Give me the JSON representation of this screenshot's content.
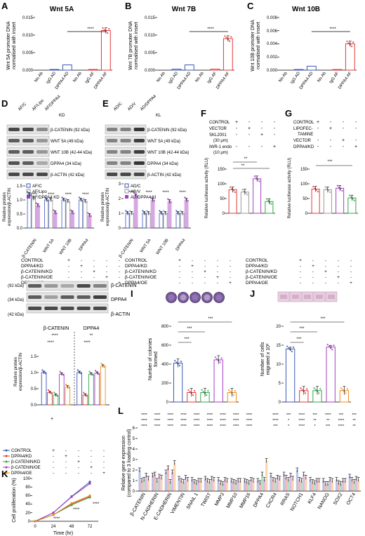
{
  "panels": {
    "A": {
      "letter": "A",
      "title": "Wnt 5A",
      "ylabel": [
        "Wnt 5A promoter DNA",
        "normalised with insert"
      ],
      "yticks": [
        "0.000",
        "0.005",
        "0.010",
        "0.015"
      ],
      "sig": "****"
    },
    "B": {
      "letter": "B",
      "title": "Wnt 7B",
      "ylabel": [
        "Wnt 7B promoter DNA",
        "normalised with insert"
      ],
      "yticks": [
        "0.000",
        "0.005",
        "0.010",
        "0.015"
      ],
      "sig": "****"
    },
    "C": {
      "letter": "C",
      "title": "Wnt 10B",
      "ylabel": [
        "Wnt 10B promoter DNA",
        "normalised with insert"
      ],
      "yticks": [
        "0.000",
        "0.002",
        "0.004",
        "0.006",
        "0.008"
      ],
      "sig": "****"
    },
    "D": {
      "letter": "D",
      "lanes": [
        "AF/C",
        "AF/Lipo",
        "AF/DPPA4",
        "KD"
      ],
      "bands": [
        "β-CATENIN (92 kDa)",
        "WNT 5A (49 kDa)",
        "WNT 10B (42-44 kDa)",
        "DPPA4 (34 kDa)",
        "β-ACTIN (42 kDa)"
      ],
      "ylabel": [
        "Relative protein",
        "expression/β-ACTIN"
      ],
      "yticks": [
        "0.0",
        "0.5",
        "1.0",
        "1.5"
      ]
    },
    "E": {
      "letter": "E",
      "lanes": [
        "AD/C",
        "AD/V",
        "AD/DPPA4",
        "KL"
      ],
      "bands": [
        "β-CATENIN (92 kDa)",
        "WNT 5A (49 kDa)",
        "WNT 10B (42-44 kDa)",
        "DPPA4 (34 kDa)",
        "β-ACTIN (42 kDa)"
      ],
      "ylabel": [
        "Relative protein",
        "expression/β-ACTIN"
      ],
      "yticks": [
        "0",
        "1",
        "2",
        "3"
      ]
    },
    "F": {
      "letter": "F",
      "rows": [
        "CONTROL",
        "VECTOR",
        "SKL2001",
        "(30 μm)",
        "IWR-1 endo",
        "(10 μm)"
      ],
      "ylabel": "Relative luciferase activity (RLU)",
      "yticks": [
        "0",
        "50",
        "100",
        "150"
      ],
      "sig1": "**",
      "sig2": "**",
      "signs": [
        "+",
        "-",
        "-",
        "-",
        "-",
        "+",
        "-",
        "-",
        "-",
        "-",
        "+",
        "-",
        "-",
        "-",
        "-",
        "+"
      ]
    },
    "G": {
      "letter": "G",
      "rows": [
        "CONTROL",
        "LIPOFEC-",
        "TAMINE",
        "VECTOR",
        "DPPA4/KD"
      ],
      "ylabel": "Relative luciferase activity (RLU)",
      "yticks": [
        "0",
        "50",
        "100",
        "150"
      ],
      "sig1": "***",
      "signs": [
        "+",
        "-",
        "-",
        "-",
        "-",
        "+",
        "-",
        "-",
        "-",
        "-",
        "+",
        "-",
        "-",
        "-",
        "-",
        "+"
      ]
    },
    "H": {
      "bands": [
        "β-CATENIN",
        "DPPA4",
        "β-ACTIN"
      ],
      "kda": [
        "(92 kDa)",
        "(34 kDa)",
        "(42 kDa)"
      ],
      "groups": [
        "β-CATENIN",
        "DPPA4"
      ],
      "ylabel": [
        "Relative protein",
        "expression/β-ACTIN"
      ],
      "yticks": [
        "0.0",
        "0.5",
        "1.0",
        "1.5"
      ],
      "sig": [
        "****",
        "****",
        "****",
        "**"
      ]
    },
    "I": {
      "letter": "I",
      "ylabel": [
        "Number of colonies",
        "formed"
      ],
      "yticks": [
        "0",
        "200",
        "400",
        "600",
        "800"
      ],
      "sig": [
        "***",
        "***",
        "***"
      ]
    },
    "J": {
      "letter": "J",
      "ylabel": [
        "Number of cells",
        "migrated x 10²"
      ],
      "yticks": [
        "0",
        "5",
        "10",
        "15",
        "20"
      ],
      "sig": [
        "***",
        "***",
        "***"
      ]
    },
    "K": {
      "letter": "K",
      "ylabel": "Cell proliferation (%)",
      "xlabel": "Time (hr)",
      "xticks": [
        "0",
        "24",
        "48",
        "72"
      ],
      "yticks": [
        "0",
        "20",
        "40",
        "60",
        "80",
        "100"
      ],
      "sig": [
        "****",
        "****",
        "****"
      ]
    },
    "L": {
      "letter": "L",
      "ylabel": [
        "Relative gene expression",
        "(compared to 3 loading control)"
      ],
      "yticks": [
        "0",
        "1",
        "2",
        "3",
        "4",
        "5",
        "6"
      ],
      "genes": [
        "β-CATENIN",
        "N-CADHERIN",
        "E-CADHERIN",
        "VIMENTIN",
        "SNAIL 1",
        "TWIST",
        "MMP3",
        "MMP10",
        "MMP16",
        "DPPA4",
        "CXCR4",
        "RRAS",
        "NOTCH1",
        "KLF4",
        "NANOG",
        "SOX2",
        "OCT4"
      ],
      "sigRow1": [
        "****",
        "****",
        "****",
        "****",
        "****",
        "****",
        "****",
        "****",
        "****",
        "",
        "****",
        "***",
        "****",
        "***",
        "****",
        "***",
        "***"
      ],
      "sigRow2": [
        "****",
        "****",
        "****",
        "****",
        "****",
        "****",
        "****",
        "****",
        "****",
        "",
        "****",
        "*",
        "****",
        "**",
        "**",
        "****",
        "**"
      ],
      "sigRow3": [
        "****",
        "****",
        "****",
        "****",
        "****",
        "****",
        "****",
        "****",
        "****",
        "",
        "***",
        "*",
        "****",
        "*",
        "***",
        "****",
        "**"
      ]
    }
  },
  "conditions": {
    "labels": [
      "CONTROL",
      "DPPA4/KD",
      "β-CATENIN/KD",
      "β-CATENIN/OE",
      "DPPA4/OE"
    ],
    "legend": [
      "CONTROL",
      "DPPA4/KD",
      "β-CATENIN/KD",
      "β-CATENIN/OE",
      "DPPA4/OE"
    ],
    "signs": [
      [
        "+",
        "-",
        "-",
        "-",
        "-"
      ],
      [
        "-",
        "+",
        "-",
        "-",
        "-"
      ],
      [
        "-",
        "-",
        "+",
        "-",
        "-"
      ],
      [
        "-",
        "-",
        "-",
        "+",
        "-"
      ],
      [
        "-",
        "-",
        "-",
        "-",
        "+"
      ]
    ]
  },
  "legends": {
    "D": [
      "AF/C",
      "AF/Lipo",
      "AF/DPPA4 KD"
    ],
    "E": [
      "AD/C",
      "AD/V",
      "AD/DPPA4 KI"
    ]
  },
  "colors": {
    "blue": "#3b56b5",
    "red": "#e03a3a",
    "green": "#2ea84a",
    "purple": "#a33fc2",
    "orange": "#f08a1c",
    "gray": "#666666"
  },
  "chart_data": [
    {
      "id": "A",
      "type": "bar",
      "title": "Wnt 5A",
      "ylim": [
        0,
        0.015
      ],
      "categories": [
        "No Ab",
        "IgG AD",
        "DPPA4 AD",
        "No Ab",
        "IgG AF",
        "DPPA4 AF"
      ],
      "values": [
        0.0,
        0.0002,
        0.0015,
        0.0,
        0.0002,
        0.0113
      ]
    },
    {
      "id": "B",
      "type": "bar",
      "title": "Wnt 7B",
      "ylim": [
        0,
        0.015
      ],
      "categories": [
        "No Ab",
        "IgG AD",
        "DPPA4 AD",
        "No Ab",
        "IgG AF",
        "DPPA4 AF"
      ],
      "values": [
        0.0,
        0.0003,
        0.0015,
        0.0,
        0.0003,
        0.009
      ]
    },
    {
      "id": "C",
      "type": "bar",
      "title": "Wnt 10B",
      "ylim": [
        0,
        0.008
      ],
      "categories": [
        "No Ab",
        "IgG AD",
        "DPPA4 AD",
        "No Ab",
        "IgG AF",
        "DPPA4 AF"
      ],
      "values": [
        0.0,
        0.0001,
        0.0006,
        0.0,
        0.0001,
        0.004
      ]
    },
    {
      "id": "D",
      "type": "bar",
      "ylim": [
        0,
        1.5
      ],
      "categories": [
        "β-CATENIN",
        "WNT 5A",
        "WNT 10B",
        "DPPA4"
      ],
      "series": [
        {
          "name": "AF/C",
          "values": [
            1.2,
            1.0,
            1.0,
            1.0
          ]
        },
        {
          "name": "AF/Lipo",
          "values": [
            1.05,
            1.0,
            0.95,
            0.95
          ]
        },
        {
          "name": "AF/DPPA4 KD",
          "values": [
            0.8,
            0.55,
            0.55,
            0.45
          ]
        }
      ]
    },
    {
      "id": "E",
      "type": "bar",
      "ylim": [
        0,
        3
      ],
      "categories": [
        "β-CATENIN",
        "WNT 5A",
        "WNT 10B",
        "DPPA4"
      ],
      "series": [
        {
          "name": "AD/C",
          "values": [
            1.0,
            1.0,
            1.0,
            1.0
          ]
        },
        {
          "name": "AD/V",
          "values": [
            1.0,
            1.0,
            1.0,
            1.0
          ]
        },
        {
          "name": "AD/DPPA4 KI",
          "values": [
            2.2,
            1.9,
            1.8,
            1.9
          ]
        }
      ]
    },
    {
      "id": "F",
      "type": "bar",
      "ylim": [
        0,
        150
      ],
      "categories": [
        "1",
        "2",
        "3",
        "4"
      ],
      "values": [
        80,
        72,
        117,
        40
      ]
    },
    {
      "id": "G",
      "type": "bar",
      "ylim": [
        0,
        150
      ],
      "categories": [
        "1",
        "2",
        "3",
        "4"
      ],
      "values": [
        82,
        80,
        85,
        52
      ]
    },
    {
      "id": "H",
      "type": "bar",
      "ylim": [
        0,
        1.5
      ],
      "categories": [
        "β-CATENIN",
        "DPPA4"
      ],
      "series": [
        {
          "name": "CONTROL",
          "values": [
            1.0,
            1.0
          ]
        },
        {
          "name": "DPPA4/KD",
          "values": [
            0.38,
            0.3
          ]
        },
        {
          "name": "β-CATENIN/KD",
          "values": [
            0.3,
            0.95
          ]
        },
        {
          "name": "β-CATENIN/OE",
          "values": [
            0.95,
            0.98
          ]
        },
        {
          "name": "DPPA4/OE",
          "values": [
            0.55,
            1.2
          ]
        }
      ]
    },
    {
      "id": "I",
      "type": "bar",
      "ylim": [
        0,
        800
      ],
      "categories": [
        "CONTROL",
        "DPPA4/KD",
        "β-CATENIN/KD",
        "β-CATENIN/OE",
        "DPPA4/OE"
      ],
      "values": [
        410,
        100,
        100,
        445,
        100
      ]
    },
    {
      "id": "J",
      "type": "bar",
      "ylim": [
        0,
        20
      ],
      "categories": [
        "CONTROL",
        "DPPA4/KD",
        "β-CATENIN/KD",
        "β-CATENIN/OE",
        "DPPA4/OE"
      ],
      "values": [
        14,
        3,
        3,
        14.5,
        3
      ]
    },
    {
      "id": "K",
      "type": "line",
      "ylim": [
        0,
        100
      ],
      "x": [
        0,
        24,
        48,
        72
      ],
      "series": [
        {
          "name": "CONTROL",
          "values": [
            0,
            20,
            58,
            92
          ]
        },
        {
          "name": "DPPA4/KD",
          "values": [
            0,
            15,
            40,
            58
          ]
        },
        {
          "name": "β-CATENIN/KD",
          "values": [
            0,
            15,
            38,
            56
          ]
        },
        {
          "name": "β-CATENIN/OE",
          "values": [
            0,
            20,
            57,
            88
          ]
        },
        {
          "name": "DPPA4/OE",
          "values": [
            0,
            15,
            42,
            60
          ]
        }
      ]
    },
    {
      "id": "L",
      "type": "bar",
      "ylim": [
        0,
        6
      ],
      "categories": [
        "β-CATENIN",
        "N-CADHERIN",
        "E-CADHERIN",
        "VIMENTIN",
        "SNAIL 1",
        "TWIST",
        "MMP3",
        "MMP10",
        "MMP16",
        "DPPA4",
        "CXCR4",
        "RRAS",
        "NOTCH1",
        "KLF4",
        "NANOG",
        "SOX2",
        "OCT4"
      ],
      "series": [
        {
          "name": "CONTROL",
          "values": [
            2.0,
            1.5,
            1.8,
            1.2,
            1.1,
            1.2,
            1.1,
            1.0,
            1.0,
            1.0,
            1.5,
            1.6,
            2.0,
            1.1,
            1.0,
            1.1,
            1.4
          ]
        },
        {
          "name": "DPPA4/KD",
          "values": [
            1.0,
            1.6,
            2.2,
            1.0,
            0.9,
            1.0,
            0.8,
            0.9,
            0.9,
            0.8,
            1.1,
            1.3,
            1.1,
            0.9,
            0.7,
            0.8,
            1.1
          ]
        },
        {
          "name": "β-CATENIN/KD",
          "values": [
            1.1,
            1.0,
            0.9,
            0.9,
            0.8,
            0.9,
            0.7,
            0.8,
            0.8,
            1.6,
            1.0,
            1.1,
            1.0,
            0.8,
            0.7,
            0.7,
            0.9
          ]
        },
        {
          "name": "β-CATENIN/OE",
          "values": [
            1.5,
            1.4,
            1.8,
            1.3,
            1.0,
            1.2,
            1.1,
            1.0,
            1.1,
            1.1,
            1.3,
            1.5,
            1.6,
            1.0,
            1.1,
            1.0,
            1.2
          ]
        },
        {
          "name": "DPPA4/OE",
          "values": [
            1.2,
            1.3,
            2.7,
            1.1,
            1.0,
            1.1,
            1.0,
            1.0,
            1.0,
            2.9,
            1.2,
            1.2,
            1.3,
            1.0,
            1.0,
            1.0,
            1.1
          ]
        }
      ]
    }
  ]
}
